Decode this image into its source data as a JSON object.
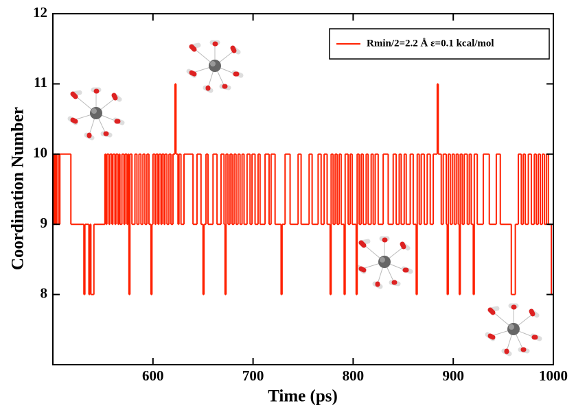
{
  "chart_data": {
    "type": "step",
    "xlabel": "Time (ps)",
    "ylabel": "Coordination Number",
    "xlim": [
      500,
      1000
    ],
    "ylim": [
      7,
      12
    ],
    "xticks": [
      600,
      700,
      800,
      900,
      1000
    ],
    "yticks": [
      8,
      9,
      10,
      11,
      12
    ],
    "legend": "upper right",
    "series": [
      {
        "name": "Rmin/2=2.2 Å  ε=0.1 kcal/mol",
        "color": "#ff2000",
        "x": [
          500,
          501,
          502,
          503,
          504,
          506,
          507,
          518,
          531,
          532,
          536,
          537,
          538,
          541,
          552,
          553,
          554,
          556,
          557,
          559,
          560,
          562,
          563,
          565,
          566,
          567,
          569,
          571,
          572,
          574,
          575,
          576,
          577,
          579,
          582,
          584,
          586,
          588,
          590,
          592,
          594,
          596,
          598,
          599,
          600,
          602,
          603,
          605,
          606,
          608,
          609,
          611,
          612,
          614,
          616,
          618,
          620,
          622,
          623,
          625,
          626,
          628,
          631,
          640,
          644,
          648,
          650,
          651,
          653,
          655,
          660,
          664,
          668,
          671,
          672,
          673,
          675,
          677,
          679,
          681,
          683,
          685,
          687,
          689,
          691,
          694,
          697,
          699,
          702,
          705,
          707,
          712,
          716,
          718,
          722,
          728,
          729,
          732,
          737,
          745,
          748,
          756,
          759,
          765,
          768,
          771,
          774,
          777,
          778,
          780,
          782,
          784,
          786,
          788,
          791,
          792,
          795,
          797,
          799,
          803,
          804,
          806,
          808,
          810,
          813,
          815,
          818,
          820,
          822,
          825,
          830,
          835,
          840,
          843,
          846,
          848,
          851,
          853,
          857,
          860,
          863,
          864,
          866,
          868,
          871,
          874,
          877,
          880,
          884,
          885,
          888,
          890,
          893,
          894,
          895,
          897,
          899,
          901,
          903,
          905,
          906,
          907,
          909,
          911,
          914,
          916,
          918,
          920,
          921,
          924,
          930,
          936,
          943,
          947,
          958,
          962,
          965,
          968,
          970,
          972,
          975,
          978,
          981,
          983,
          985,
          987,
          989,
          991,
          993,
          995,
          998,
          1000
        ],
        "values": [
          10,
          9,
          10,
          9,
          10,
          9,
          10,
          9,
          8,
          9,
          8,
          9,
          8,
          9,
          10,
          9,
          10,
          9,
          10,
          9,
          10,
          9,
          10,
          9,
          10,
          9,
          10,
          9,
          10,
          9,
          10,
          8,
          10,
          9,
          10,
          9,
          10,
          9,
          10,
          9,
          10,
          9,
          8,
          9,
          10,
          9,
          10,
          9,
          10,
          9,
          10,
          9,
          10,
          9,
          10,
          9,
          10,
          11,
          10,
          9,
          10,
          9,
          10,
          9,
          10,
          9,
          8,
          9,
          10,
          9,
          10,
          9,
          10,
          9,
          8,
          10,
          9,
          10,
          9,
          10,
          9,
          10,
          9,
          10,
          9,
          10,
          9,
          10,
          9,
          10,
          9,
          10,
          9,
          10,
          9,
          8,
          9,
          10,
          9,
          10,
          9,
          10,
          9,
          10,
          9,
          10,
          9,
          8,
          10,
          9,
          10,
          9,
          10,
          9,
          8,
          10,
          9,
          10,
          9,
          8,
          10,
          9,
          10,
          9,
          10,
          9,
          10,
          9,
          10,
          9,
          10,
          9,
          10,
          9,
          10,
          9,
          10,
          9,
          10,
          9,
          8,
          10,
          9,
          10,
          9,
          10,
          9,
          10,
          11,
          10,
          9,
          10,
          9,
          8,
          10,
          9,
          10,
          9,
          10,
          9,
          8,
          10,
          9,
          10,
          9,
          10,
          9,
          8,
          10,
          9,
          10,
          9,
          10,
          9,
          8,
          9,
          10,
          9,
          10,
          9,
          10,
          9,
          10,
          9,
          10,
          9,
          10,
          9,
          10,
          9,
          8,
          8
        ]
      }
    ]
  }
}
